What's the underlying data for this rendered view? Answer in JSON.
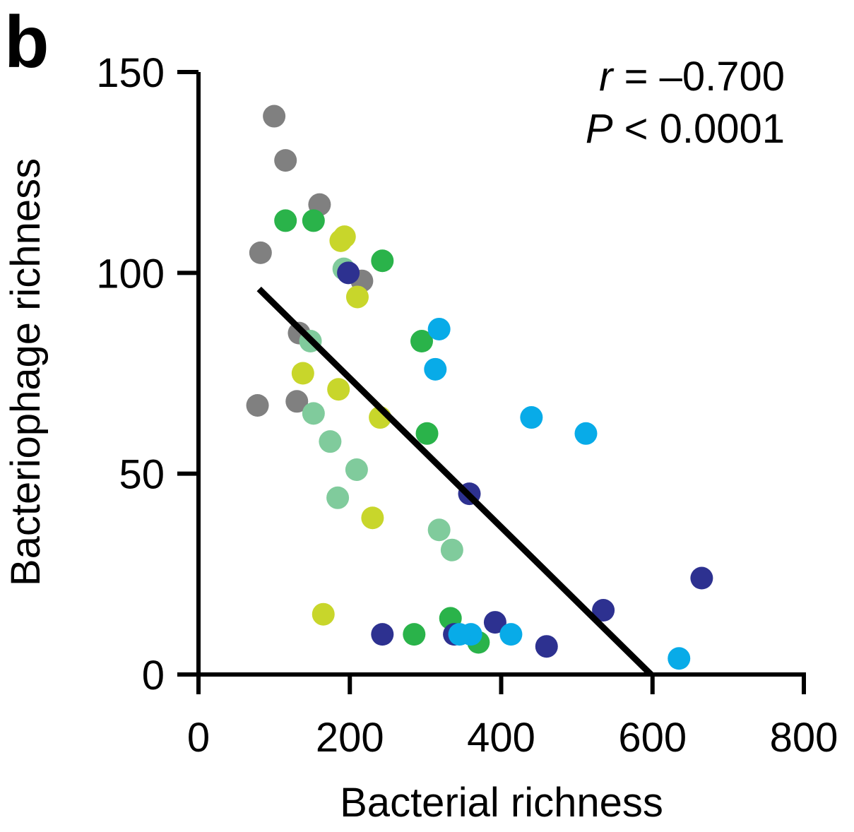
{
  "panel_label": "b",
  "annotation": {
    "r_symbol": "r",
    "r_text": " = –0.700",
    "p_symbol": "P",
    "p_text": " < 0.0001"
  },
  "chart_data": {
    "type": "scatter",
    "xlabel": "Bacterial richness",
    "ylabel": "Bacteriophage richness",
    "xlim": [
      0,
      800
    ],
    "ylim": [
      0,
      150
    ],
    "xticks": [
      0,
      200,
      400,
      600,
      800
    ],
    "xtick_labels": [
      "0",
      "200",
      "400",
      "600",
      "800"
    ],
    "yticks": [
      0,
      50,
      100,
      150
    ],
    "ytick_labels": [
      "0",
      "50",
      "100",
      "150"
    ],
    "grid": false,
    "legend": "none",
    "regression_line": {
      "x": [
        80,
        598
      ],
      "y": [
        96,
        0
      ],
      "color": "#000000"
    },
    "series": [
      {
        "color": "#808080",
        "points": [
          [
            100,
            139
          ],
          [
            115,
            128
          ],
          [
            160,
            117
          ],
          [
            82,
            105
          ],
          [
            216,
            98
          ],
          [
            133,
            85
          ],
          [
            78,
            67
          ],
          [
            130,
            68
          ]
        ]
      },
      {
        "color": "#2ab34a",
        "points": [
          [
            115,
            113
          ],
          [
            152,
            113
          ],
          [
            243,
            103
          ],
          [
            295,
            83
          ],
          [
            302,
            60
          ],
          [
            333,
            14
          ],
          [
            285,
            10
          ],
          [
            370,
            8
          ]
        ]
      },
      {
        "color": "#c8d62b",
        "points": [
          [
            188,
            108
          ],
          [
            193,
            109
          ],
          [
            210,
            94
          ],
          [
            138,
            75
          ],
          [
            185,
            71
          ],
          [
            240,
            64
          ],
          [
            230,
            39
          ],
          [
            165,
            15
          ]
        ]
      },
      {
        "color": "#80cb9c",
        "points": [
          [
            192,
            101
          ],
          [
            148,
            83
          ],
          [
            152,
            65
          ],
          [
            174,
            58
          ],
          [
            209,
            51
          ],
          [
            184,
            44
          ],
          [
            318,
            36
          ],
          [
            335,
            31
          ]
        ]
      },
      {
        "color": "#2d3190",
        "points": [
          [
            198,
            100
          ],
          [
            358,
            45
          ],
          [
            665,
            24
          ],
          [
            535,
            16
          ],
          [
            392,
            13
          ],
          [
            338,
            10
          ],
          [
            243,
            10
          ],
          [
            460,
            7
          ]
        ]
      },
      {
        "color": "#08abe8",
        "points": [
          [
            318,
            86
          ],
          [
            313,
            76
          ],
          [
            440,
            64
          ],
          [
            512,
            60
          ],
          [
            413,
            10
          ],
          [
            360,
            10
          ],
          [
            345,
            10
          ],
          [
            635,
            4
          ]
        ]
      }
    ]
  }
}
